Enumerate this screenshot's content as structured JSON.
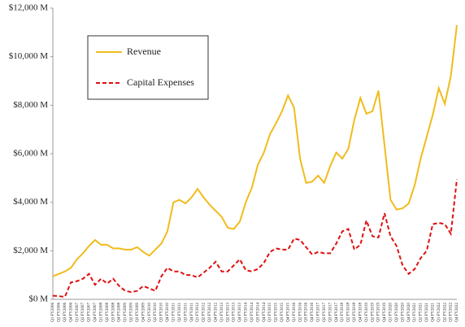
{
  "chart_data": {
    "type": "line",
    "categories": [
      "Q1 FY2006",
      "Q2 FY2006",
      "Q3 FY2006",
      "Q4 FY2006",
      "Q1 FY2007",
      "Q2 FY2007",
      "Q3 FY2007",
      "Q4 FY2007",
      "Q1 FY2008",
      "Q2 FY2008",
      "Q3 FY2008",
      "Q4 FY2008",
      "Q1 FY2009",
      "Q2 FY2009",
      "Q3 FY2009",
      "Q4 FY2009",
      "Q1 FY2010",
      "Q2 FY2010",
      "Q3 FY2010",
      "Q4 FY2010",
      "Q1 FY2011",
      "Q2 FY2011",
      "Q3 FY2011",
      "Q4 FY2011",
      "Q1 FY2012",
      "Q2 FY2012",
      "Q3 FY2012",
      "Q4 FY2012",
      "Q1 FY2013",
      "Q2 FY2013",
      "Q3 FY2013",
      "Q4 FY2013",
      "Q1 FY2014",
      "Q2 FY2014",
      "Q3 FY2014",
      "Q4 FY2014",
      "Q1 FY2015",
      "Q2 FY2015",
      "Q3 FY2015",
      "Q4 FY2015",
      "Q1 FY2016",
      "Q2 FY2016",
      "Q3 FY2016",
      "Q4 FY2016",
      "Q1 FY2017",
      "Q2 FY2017",
      "Q3 FY2017",
      "Q4 FY2017",
      "Q1 FY2018",
      "Q2 FY2018",
      "Q3 FY2018",
      "Q4 FY2018",
      "Q1 FY2019",
      "Q2 FY2019",
      "Q3 FY2019",
      "Q4 FY2019",
      "Q1 FY2020",
      "Q2 FY2020",
      "Q3 FY2020",
      "Q4 FY2020",
      "Q1 FY2021",
      "Q2 FY2021",
      "Q3 FY2021",
      "Q4 FY2021",
      "Q1 FY2022",
      "Q2 FY2022",
      "Q3 FY2022",
      "Q4 FY2022"
    ],
    "series": [
      {
        "name": "Revenue",
        "color": "#f0bc1c",
        "dash": false,
        "values": [
          950,
          1050,
          1150,
          1300,
          1650,
          1900,
          2200,
          2450,
          2250,
          2250,
          2100,
          2100,
          2050,
          2050,
          2150,
          1950,
          1800,
          2050,
          2300,
          2800,
          4000,
          4100,
          3950,
          4200,
          4550,
          4200,
          3900,
          3650,
          3400,
          2950,
          2900,
          3200,
          4000,
          4600,
          5550,
          6050,
          6800,
          7250,
          7750,
          8400,
          7900,
          5800,
          4800,
          4850,
          5100,
          4800,
          5500,
          6050,
          5800,
          6200,
          7400,
          8300,
          7650,
          7750,
          8600,
          6350,
          4100,
          3700,
          3750,
          3950,
          4700,
          5800,
          6700,
          7600,
          8700,
          8050,
          9200,
          11300
        ]
      },
      {
        "name": "Capital Expenses",
        "color": "#e01010",
        "dash": true,
        "values": [
          150,
          130,
          100,
          700,
          750,
          850,
          1050,
          600,
          850,
          650,
          850,
          550,
          350,
          300,
          350,
          550,
          450,
          350,
          950,
          1300,
          1150,
          1150,
          1000,
          1000,
          900,
          1100,
          1300,
          1550,
          1150,
          1150,
          1400,
          1650,
          1200,
          1150,
          1250,
          1500,
          1950,
          2100,
          2050,
          2050,
          2500,
          2450,
          2150,
          1850,
          1950,
          1900,
          1900,
          2300,
          2800,
          2900,
          2050,
          2250,
          3250,
          2600,
          2550,
          3550,
          2600,
          2200,
          1400,
          1050,
          1250,
          1700,
          2000,
          3100,
          3150,
          3100,
          2700,
          4950
        ]
      }
    ],
    "ylim": [
      0,
      12000
    ],
    "yticks": [
      {
        "value": 0,
        "label": "$0 M"
      },
      {
        "value": 2000,
        "label": "$2,000 M"
      },
      {
        "value": 4000,
        "label": "$4,000 M"
      },
      {
        "value": 6000,
        "label": "$6,000 M"
      },
      {
        "value": 8000,
        "label": "$8,000 M"
      },
      {
        "value": 10000,
        "label": "$10,000 M"
      },
      {
        "value": 12000,
        "label": "$12,000 M"
      }
    ],
    "grid": false,
    "legend": "upper left"
  }
}
